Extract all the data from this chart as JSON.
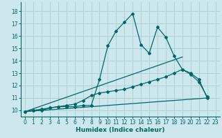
{
  "xlabel": "Humidex (Indice chaleur)",
  "bg_color": "#cce8ee",
  "grid_color": "#aacccc",
  "line_color": "#006666",
  "xlim": [
    -0.5,
    23.5
  ],
  "ylim": [
    9.5,
    18.7
  ],
  "yticks": [
    10,
    11,
    12,
    13,
    14,
    15,
    16,
    17,
    18
  ],
  "xticks": [
    0,
    1,
    2,
    3,
    4,
    5,
    6,
    7,
    8,
    9,
    10,
    11,
    12,
    13,
    14,
    15,
    16,
    17,
    18,
    19,
    20,
    21,
    22,
    23
  ],
  "series1_x": [
    0,
    1,
    2,
    3,
    4,
    5,
    6,
    7,
    8,
    9,
    10,
    11,
    12,
    13,
    14,
    15,
    16,
    17,
    18,
    19,
    20,
    21,
    22
  ],
  "series1_y": [
    9.9,
    10.0,
    10.0,
    10.2,
    10.3,
    10.3,
    10.3,
    10.4,
    10.4,
    12.5,
    15.2,
    16.4,
    17.1,
    17.8,
    15.3,
    14.6,
    16.7,
    15.9,
    14.4,
    13.3,
    13.0,
    12.5,
    11.0
  ],
  "series2_x": [
    0,
    1,
    2,
    3,
    4,
    5,
    6,
    7,
    8,
    9,
    10,
    11,
    12,
    13,
    14,
    15,
    16,
    17,
    18,
    19,
    20,
    21,
    22
  ],
  "series2_y": [
    9.9,
    10.0,
    10.1,
    10.2,
    10.3,
    10.4,
    10.5,
    10.8,
    11.2,
    11.4,
    11.5,
    11.6,
    11.7,
    11.9,
    12.1,
    12.3,
    12.5,
    12.7,
    13.0,
    13.3,
    12.9,
    12.3,
    11.1
  ],
  "series3_x": [
    0,
    22
  ],
  "series3_y": [
    9.9,
    11.0
  ],
  "series4_x": [
    0,
    19
  ],
  "series4_y": [
    9.9,
    14.3
  ]
}
